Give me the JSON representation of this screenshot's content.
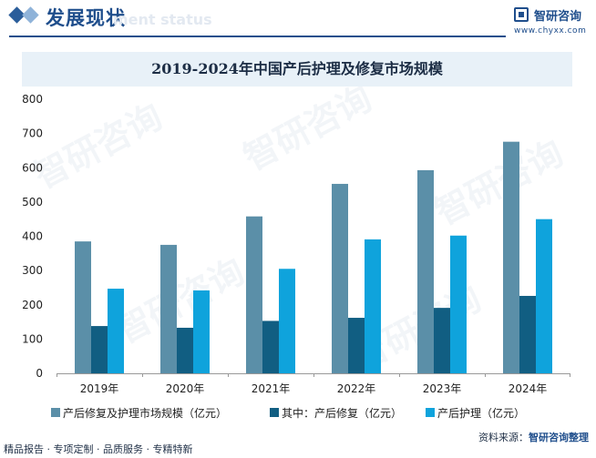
{
  "header": {
    "title": "发展现状",
    "subtitle": "ment status"
  },
  "brand": {
    "name": "智研咨询",
    "url": "www.chyxx.com"
  },
  "footer": {
    "left": "精品报告 · 专项定制 · 品质服务 · 专精特新",
    "source_label": "资料来源：",
    "source_value": "智研咨询整理"
  },
  "chart_data": {
    "type": "bar",
    "title": "2019-2024年中国产后护理及修复市场规模",
    "categories": [
      "2019年",
      "2020年",
      "2021年",
      "2022年",
      "2023年",
      "2024年"
    ],
    "series": [
      {
        "name": "产后修复及护理市场规模（亿元）",
        "values": [
          385,
          375,
          458,
          553,
          593,
          676
        ],
        "color": "#5b8fa8"
      },
      {
        "name": "其中：产后修复（亿元）",
        "values": [
          138,
          133,
          153,
          162,
          191,
          226
        ],
        "color": "#115e82"
      },
      {
        "name": "产后护理（亿元）",
        "values": [
          247,
          242,
          305,
          391,
          402,
          450
        ],
        "color": "#0fa3dc"
      }
    ],
    "ylim": [
      0,
      800
    ],
    "yticks": [
      0,
      100,
      200,
      300,
      400,
      500,
      600,
      700,
      800
    ],
    "xlabel": "",
    "ylabel": "",
    "grid": false,
    "legend_position": "bottom"
  }
}
